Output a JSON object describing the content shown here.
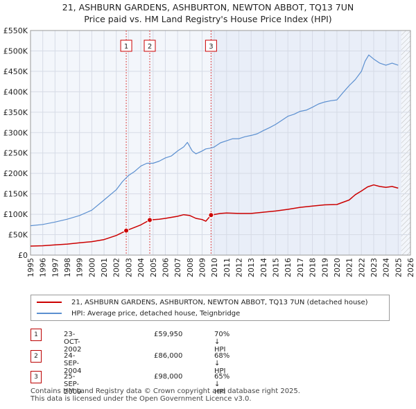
{
  "chart_data": {
    "type": "line",
    "title": "21, ASHBURN GARDENS, ASHBURTON, NEWTON ABBOT, TQ13 7UN",
    "subtitle": "Price paid vs. HM Land Registry's House Price Index (HPI)",
    "xlim": [
      1995,
      2026
    ],
    "ylim": [
      0,
      550000
    ],
    "y_ticks": [
      {
        "value": 0,
        "label": "£0"
      },
      {
        "value": 50000,
        "label": "£50K"
      },
      {
        "value": 100000,
        "label": "£100K"
      },
      {
        "value": 150000,
        "label": "£150K"
      },
      {
        "value": 200000,
        "label": "£200K"
      },
      {
        "value": 250000,
        "label": "£250K"
      },
      {
        "value": 300000,
        "label": "£300K"
      },
      {
        "value": 350000,
        "label": "£350K"
      },
      {
        "value": 400000,
        "label": "£400K"
      },
      {
        "value": 450000,
        "label": "£450K"
      },
      {
        "value": 500000,
        "label": "£500K"
      },
      {
        "value": 550000,
        "label": "£550K"
      }
    ],
    "x_ticks": [
      "1995",
      "1996",
      "1997",
      "1998",
      "1999",
      "2000",
      "2001",
      "2002",
      "2003",
      "2004",
      "2005",
      "2006",
      "2007",
      "2008",
      "2009",
      "2010",
      "2011",
      "2012",
      "2013",
      "2014",
      "2015",
      "2016",
      "2017",
      "2018",
      "2019",
      "2020",
      "2021",
      "2022",
      "2023",
      "2024",
      "2025",
      "2026"
    ],
    "grid": true,
    "data_end": 2025.25,
    "series": [
      {
        "name": "21, ASHBURN GARDENS, ASHBURTON, NEWTON ABBOT, TQ13 7UN (detached house)",
        "color": "#cc0000",
        "x": [
          1995.0,
          1996.0,
          1997.0,
          1998.0,
          1999.0,
          2000.0,
          2001.0,
          2002.0,
          2002.81,
          2003.5,
          2004.0,
          2004.73,
          2005.5,
          2006.0,
          2007.0,
          2007.5,
          2008.0,
          2008.5,
          2009.0,
          2009.3,
          2009.73,
          2010.5,
          2011.0,
          2012.0,
          2013.0,
          2014.0,
          2015.0,
          2016.0,
          2017.0,
          2018.0,
          2019.0,
          2020.0,
          2021.0,
          2021.5,
          2022.0,
          2022.5,
          2023.0,
          2023.5,
          2024.0,
          2024.5,
          2025.0
        ],
        "y": [
          22000,
          23000,
          25000,
          27000,
          30000,
          33000,
          38000,
          48000,
          59950,
          68000,
          74000,
          86000,
          88000,
          90000,
          95000,
          99000,
          97000,
          90000,
          87000,
          83000,
          98000,
          102000,
          103000,
          102000,
          102000,
          105000,
          108000,
          112000,
          117000,
          120000,
          123000,
          124000,
          135000,
          148000,
          157000,
          167000,
          172000,
          168000,
          166000,
          168000,
          164000
        ]
      },
      {
        "name": "HPI: Average price, detached house, Teignbridge",
        "color": "#5b8fd0",
        "x": [
          1995.0,
          1996.0,
          1997.0,
          1998.0,
          1999.0,
          2000.0,
          2001.0,
          2002.0,
          2002.5,
          2003.0,
          2003.5,
          2004.0,
          2004.5,
          2005.0,
          2005.5,
          2006.0,
          2006.5,
          2007.0,
          2007.5,
          2007.8,
          2008.2,
          2008.5,
          2009.0,
          2009.3,
          2009.7,
          2010.0,
          2010.5,
          2011.0,
          2011.5,
          2012.0,
          2012.5,
          2013.0,
          2013.5,
          2014.0,
          2014.5,
          2015.0,
          2015.5,
          2016.0,
          2016.5,
          2017.0,
          2017.5,
          2018.0,
          2018.5,
          2019.0,
          2019.5,
          2020.0,
          2020.5,
          2021.0,
          2021.5,
          2022.0,
          2022.3,
          2022.6,
          2023.0,
          2023.5,
          2024.0,
          2024.5,
          2025.0
        ],
        "y": [
          72000,
          75000,
          81000,
          88000,
          97000,
          110000,
          135000,
          160000,
          180000,
          195000,
          205000,
          218000,
          225000,
          225000,
          230000,
          238000,
          243000,
          255000,
          265000,
          276000,
          255000,
          248000,
          255000,
          260000,
          262000,
          265000,
          275000,
          280000,
          285000,
          285000,
          290000,
          293000,
          297000,
          305000,
          312000,
          320000,
          330000,
          340000,
          345000,
          352000,
          355000,
          362000,
          370000,
          375000,
          378000,
          380000,
          398000,
          415000,
          430000,
          450000,
          475000,
          490000,
          480000,
          470000,
          465000,
          470000,
          465000
        ]
      }
    ],
    "markers": [
      {
        "label": "1",
        "x": 2002.81,
        "y": 59950
      },
      {
        "label": "2",
        "x": 2004.73,
        "y": 86000
      },
      {
        "label": "3",
        "x": 2009.73,
        "y": 98000
      }
    ]
  },
  "legend": {
    "line1": "21, ASHBURN GARDENS, ASHBURTON, NEWTON ABBOT, TQ13 7UN (detached house)",
    "line2": "HPI: Average price, detached house, Teignbridge",
    "color1": "#cc0000",
    "color2": "#5b8fd0"
  },
  "transactions": [
    {
      "num": "1",
      "date": "23-OCT-2002",
      "price": "£59,950",
      "hpi": "70% ↓ HPI"
    },
    {
      "num": "2",
      "date": "24-SEP-2004",
      "price": "£86,000",
      "hpi": "68% ↓ HPI"
    },
    {
      "num": "3",
      "date": "25-SEP-2009",
      "price": "£98,000",
      "hpi": "65% ↓ HPI"
    }
  ],
  "footer": {
    "line1": "Contains HM Land Registry data © Crown copyright and database right 2025.",
    "line2": "This data is licensed under the Open Government Licence v3.0."
  }
}
